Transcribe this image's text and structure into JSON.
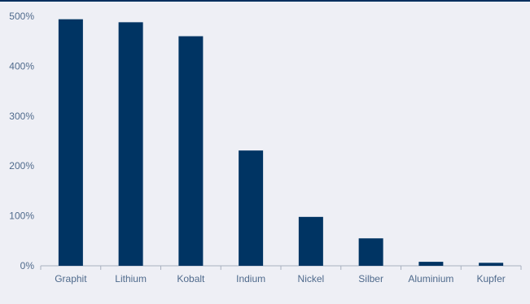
{
  "chart_data": {
    "type": "bar",
    "categories": [
      "Graphit",
      "Lithium",
      "Kobalt",
      "Indium",
      "Nickel",
      "Silber",
      "Aluminium",
      "Kupfer"
    ],
    "values": [
      494,
      488,
      460,
      231,
      98,
      55,
      8,
      6
    ],
    "ylim": [
      0,
      500
    ],
    "yticks": [
      "0%",
      "100%",
      "200%",
      "300%",
      "400%",
      "500%"
    ],
    "ytick_values": [
      0,
      100,
      200,
      300,
      400,
      500
    ],
    "grid": false,
    "colors": {
      "bar": "#003463",
      "axis": "#a8b0bf",
      "top_rule": "#002f5e",
      "text": "#4f6a8c",
      "background": "#eeeff5"
    }
  }
}
